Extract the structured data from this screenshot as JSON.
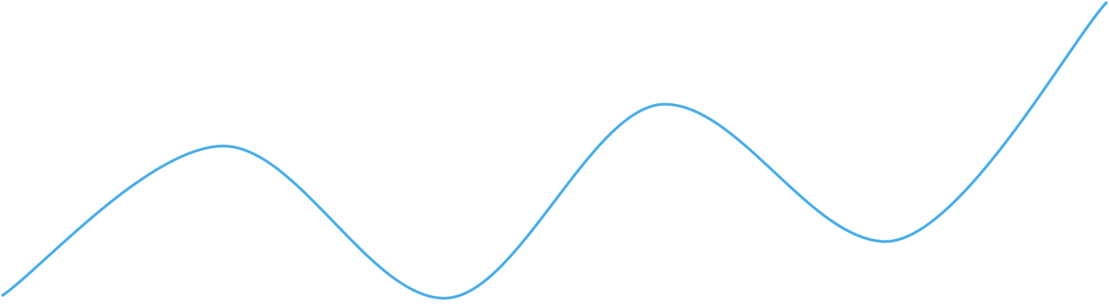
{
  "chart_data": {
    "type": "line",
    "x": [
      0,
      1,
      2,
      3,
      4,
      5
    ],
    "series": [
      {
        "values": [
          2,
          52,
          1,
          66,
          20,
          100
        ]
      }
    ],
    "title": "",
    "xlabel": "",
    "ylabel": "",
    "xlim": [
      0,
      5
    ],
    "ylim": [
      0,
      100
    ],
    "grid": false,
    "legend": "none",
    "curve": "smooth",
    "color": "#4aaee9"
  }
}
